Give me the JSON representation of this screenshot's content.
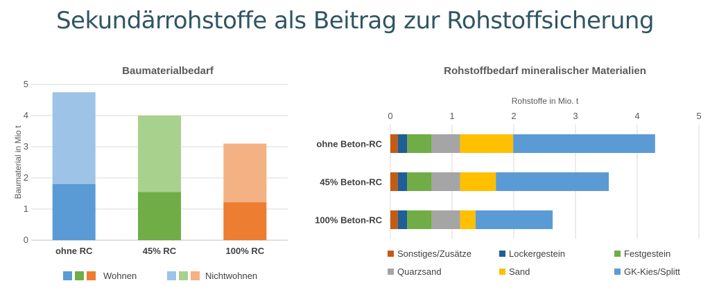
{
  "slide": {
    "title": "Sekundärrohstoffe als Beitrag zur Rohstoffsicherung"
  },
  "chart_data": [
    {
      "type": "bar",
      "stacked": true,
      "orientation": "vertical",
      "title": "Baumaterialbedarf",
      "ylabel": "Baumaterial in Mio t",
      "ylim": [
        0,
        5
      ],
      "yticks": [
        "0",
        "1",
        "2",
        "3",
        "4",
        "5"
      ],
      "categories": [
        "ohne RC",
        "45% RC",
        "100% RC"
      ],
      "series": [
        {
          "name": "Wohnen",
          "values": [
            1.8,
            1.55,
            1.22
          ],
          "colors": [
            "#5b9bd5",
            "#70ad47",
            "#ed7d31"
          ]
        },
        {
          "name": "Nichtwohnen",
          "values": [
            2.95,
            2.45,
            1.88
          ],
          "colors": [
            "#9dc3e6",
            "#a9d18e",
            "#f4b183"
          ]
        }
      ],
      "grid": true,
      "legend_position": "bottom"
    },
    {
      "type": "bar",
      "stacked": true,
      "orientation": "horizontal",
      "title": "Rohstoffbedarf mineralischer Materialien",
      "xlabel": "Rohstoffe in Mio. t",
      "xlim": [
        0,
        5
      ],
      "xticks": [
        "0",
        "1",
        "2",
        "3",
        "4",
        "5"
      ],
      "categories": [
        "ohne Beton-RC",
        "45% Beton-RC",
        "100% Beton-RC"
      ],
      "series": [
        {
          "name": "Sonstiges/Zusätze",
          "color": "#c55a11",
          "values": [
            0.12,
            0.12,
            0.12
          ]
        },
        {
          "name": "Lockergestein",
          "color": "#1f5e96",
          "values": [
            0.15,
            0.15,
            0.15
          ]
        },
        {
          "name": "Festgestein",
          "color": "#70ad47",
          "values": [
            0.4,
            0.4,
            0.4
          ]
        },
        {
          "name": "Quarzsand",
          "color": "#a5a5a5",
          "values": [
            0.46,
            0.46,
            0.46
          ]
        },
        {
          "name": "Sand",
          "color": "#ffc000",
          "values": [
            0.86,
            0.58,
            0.25
          ]
        },
        {
          "name": "GK-Kies/Splitt",
          "color": "#5b9bd5",
          "values": [
            2.3,
            1.83,
            1.25
          ]
        }
      ],
      "grid": true,
      "legend_position": "bottom"
    }
  ]
}
